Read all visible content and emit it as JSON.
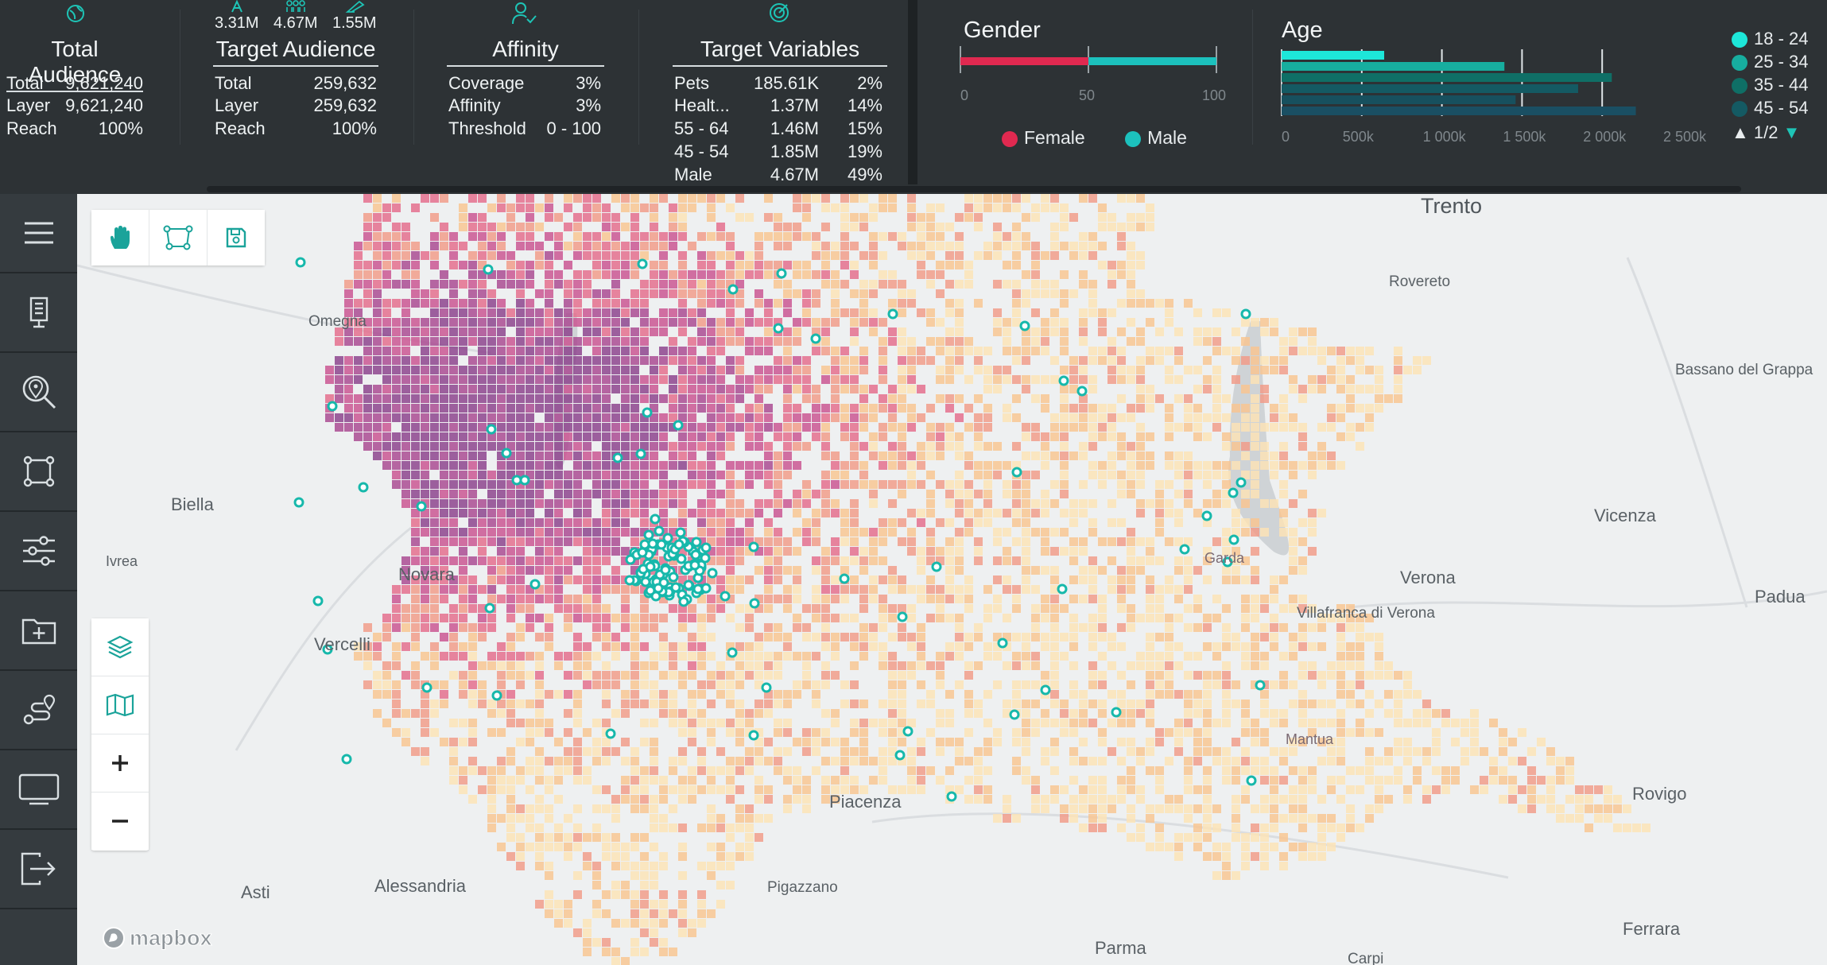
{
  "header": {
    "total_audience": {
      "title": "Total Audience",
      "rows": [
        {
          "label": "Total",
          "value": "9,621,240"
        },
        {
          "label": "Layer",
          "value": "9,621,240"
        },
        {
          "label": "Reach",
          "value": "100%"
        }
      ]
    },
    "target_audience": {
      "title": "Target Audience",
      "stats": [
        "3.31M",
        "4.67M",
        "1.55M"
      ],
      "rows": [
        {
          "label": "Total",
          "value": "259,632"
        },
        {
          "label": "Layer",
          "value": "259,632"
        },
        {
          "label": "Reach",
          "value": "100%"
        }
      ]
    },
    "affinity": {
      "title": "Affinity",
      "rows": [
        {
          "label": "Coverage",
          "value": "3%"
        },
        {
          "label": "Affinity",
          "value": "3%"
        },
        {
          "label": "Threshold",
          "value": "0 - 100"
        }
      ]
    },
    "target_variables": {
      "title": "Target Variables",
      "rows": [
        {
          "label": "Pets",
          "value": "185.61K",
          "pct": "2%"
        },
        {
          "label": "Healt...",
          "value": "1.37M",
          "pct": "14%"
        },
        {
          "label": "55 - 64",
          "value": "1.46M",
          "pct": "15%"
        },
        {
          "label": "45 - 54",
          "value": "1.85M",
          "pct": "19%"
        },
        {
          "label": "Male",
          "value": "4.67M",
          "pct": "49%"
        }
      ]
    }
  },
  "gender": {
    "title": "Gender",
    "ticks": [
      "0",
      "50",
      "100"
    ],
    "female_label": "Female",
    "male_label": "Male",
    "female_pct": 50,
    "male_pct": 50,
    "female_color": "#e02950",
    "male_color": "#1cc1bd"
  },
  "age": {
    "title": "Age",
    "ticks": [
      "0",
      "500k",
      "1 000k",
      "1 500k",
      "2 000k",
      "2 500k"
    ],
    "max": 2500000,
    "bars": [
      {
        "value": 640000,
        "color": "#1de7d9"
      },
      {
        "value": 1390000,
        "color": "#17ae9f"
      },
      {
        "value": 2060000,
        "color": "#0f6f66"
      },
      {
        "value": 1850000,
        "color": "#145a63"
      },
      {
        "value": 1460000,
        "color": "#17505e"
      },
      {
        "value": 2210000,
        "color": "#1a4f63"
      }
    ],
    "legend": [
      {
        "label": "18 - 24",
        "color": "#1de7d9"
      },
      {
        "label": "25 - 34",
        "color": "#17ae9f"
      },
      {
        "label": "35 - 44",
        "color": "#0f6f66"
      },
      {
        "label": "45 - 54",
        "color": "#145a63"
      }
    ],
    "page": "1/2"
  },
  "sidebar": {
    "items": [
      "menu-icon",
      "billboard-icon",
      "location-search-icon",
      "polygon-icon",
      "sliders-icon",
      "add-folder-icon",
      "route-icon",
      "display-icon",
      "export-icon"
    ]
  },
  "map": {
    "cities": [
      {
        "name": "Trento",
        "big": true
      },
      {
        "name": "Rovereto"
      },
      {
        "name": "Bassano del Grappa"
      },
      {
        "name": "Omegna"
      },
      {
        "name": "Biella"
      },
      {
        "name": "Ivrea"
      },
      {
        "name": "Novara"
      },
      {
        "name": "Vercelli"
      },
      {
        "name": "Vicenza"
      },
      {
        "name": "Verona"
      },
      {
        "name": "Villafranca di Verona"
      },
      {
        "name": "Padua"
      },
      {
        "name": "Piacenza"
      },
      {
        "name": "Pigazzano"
      },
      {
        "name": "Alessandria"
      },
      {
        "name": "Asti"
      },
      {
        "name": "Parma"
      },
      {
        "name": "Rovigo"
      },
      {
        "name": "Ferrara"
      },
      {
        "name": "Carpi"
      },
      {
        "name": "Garda"
      },
      {
        "name": "Mantua"
      }
    ],
    "attribution": "mapbox"
  }
}
